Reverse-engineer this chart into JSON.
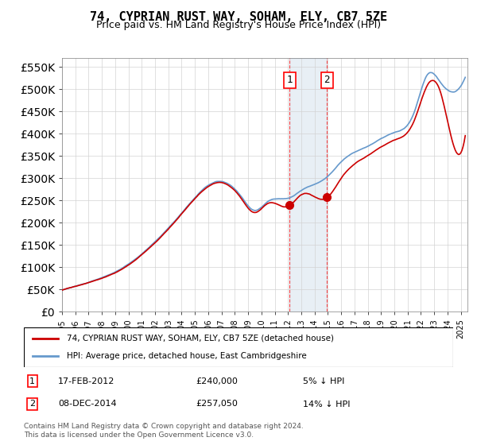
{
  "title": "74, CYPRIAN RUST WAY, SOHAM, ELY, CB7 5ZE",
  "subtitle": "Price paid vs. HM Land Registry's House Price Index (HPI)",
  "legend_line1": "74, CYPRIAN RUST WAY, SOHAM, ELY, CB7 5ZE (detached house)",
  "legend_line2": "HPI: Average price, detached house, East Cambridgeshire",
  "sale1_date": "17-FEB-2012",
  "sale1_price": 240000,
  "sale1_note": "5% ↓ HPI",
  "sale2_date": "08-DEC-2014",
  "sale2_price": 257050,
  "sale2_note": "14% ↓ HPI",
  "footer": "Contains HM Land Registry data © Crown copyright and database right 2024.\nThis data is licensed under the Open Government Licence v3.0.",
  "hpi_color": "#6699cc",
  "price_color": "#cc0000",
  "sale1_x": 2012.12,
  "sale2_x": 2014.92,
  "ylim": [
    0,
    570000
  ],
  "xlim_start": 1995,
  "xlim_end": 2025.5
}
